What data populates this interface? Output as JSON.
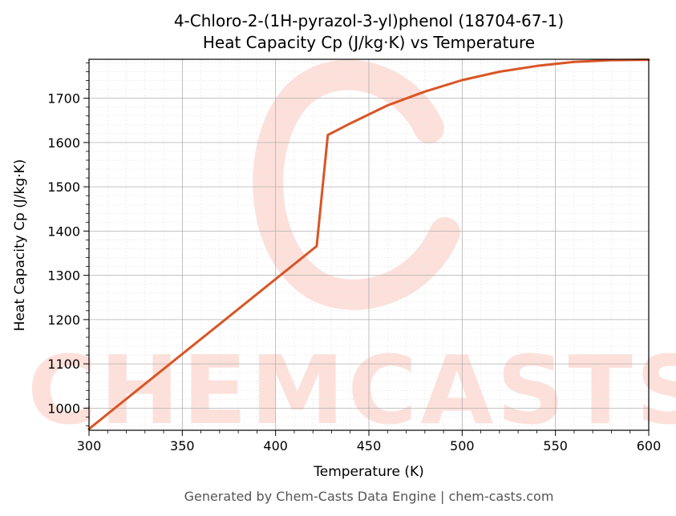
{
  "chart_data": {
    "type": "line",
    "title": "4-Chloro-2-(1H-pyrazol-3-yl)phenol (18704-67-1)",
    "subtitle": "Heat Capacity Cp (J/kg·K) vs Temperature",
    "xlabel": "Temperature (K)",
    "ylabel": "Heat Capacity Cp (J/kg·K)",
    "xlim": [
      300,
      600
    ],
    "ylim": [
      950,
      1788
    ],
    "xticks": [
      300,
      350,
      400,
      450,
      500,
      550,
      600
    ],
    "yticks": [
      1000,
      1100,
      1200,
      1300,
      1400,
      1500,
      1600,
      1700
    ],
    "grid": true,
    "line_color": "#d95525",
    "series": [
      {
        "x": [
          300,
          422,
          428,
          440,
          460,
          480,
          500,
          520,
          540,
          560,
          580,
          600
        ],
        "y": [
          953,
          1366,
          1617,
          1643,
          1684,
          1715,
          1741,
          1760,
          1773,
          1782,
          1786,
          1787
        ]
      }
    ]
  },
  "watermark": {
    "text": "CHEMCASTS",
    "color": "#fde0da"
  },
  "footer": "Generated by Chem-Casts Data Engine | chem-casts.com"
}
